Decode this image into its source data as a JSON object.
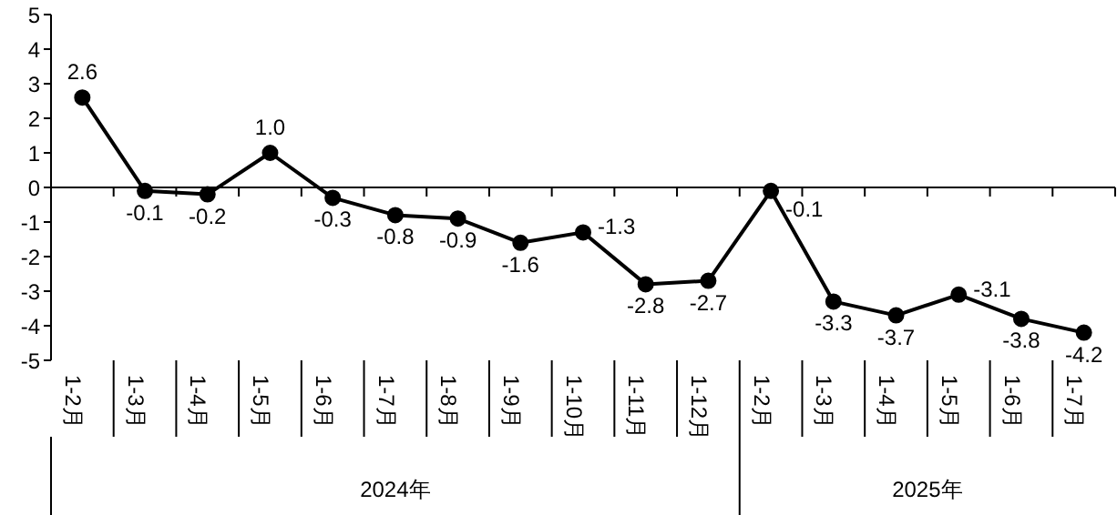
{
  "chart_data": {
    "type": "line",
    "categories": [
      "1-2月",
      "1-3月",
      "1-4月",
      "1-5月",
      "1-6月",
      "1-7月",
      "1-8月",
      "1-9月",
      "1-10月",
      "1-11月",
      "1-12月",
      "1-2月",
      "1-3月",
      "1-4月",
      "1-5月",
      "1-6月",
      "1-7月"
    ],
    "series": [
      {
        "color": "#000000",
        "values": [
          2.6,
          -0.1,
          -0.2,
          1.0,
          -0.3,
          -0.8,
          -0.9,
          -1.6,
          -1.3,
          -2.8,
          -2.7,
          -0.1,
          -3.3,
          -3.7,
          -3.1,
          -3.8,
          -4.2
        ]
      }
    ],
    "ylim": [
      -5,
      5
    ],
    "yticks": [
      -5,
      -4,
      -3,
      -2,
      -1,
      0,
      1,
      2,
      3,
      4,
      5
    ],
    "annotations": [
      "2024年",
      "2025年"
    ],
    "value_labels": [
      "2.6",
      "-0.1",
      "-0.2",
      "1.0",
      "-0.3",
      "-0.8",
      "-0.9",
      "-1.6",
      "-1.3",
      "-2.8",
      "-2.7",
      "-0.1",
      "-3.3",
      "-3.7",
      "-3.1",
      "-3.8",
      "-4.2"
    ],
    "ref_lines": [
      {
        "axis": "y",
        "value": 0,
        "color": "#000000",
        "line_style": "solid"
      }
    ],
    "marker": "circle",
    "line_style": "solid",
    "grid": false,
    "legend": false
  }
}
